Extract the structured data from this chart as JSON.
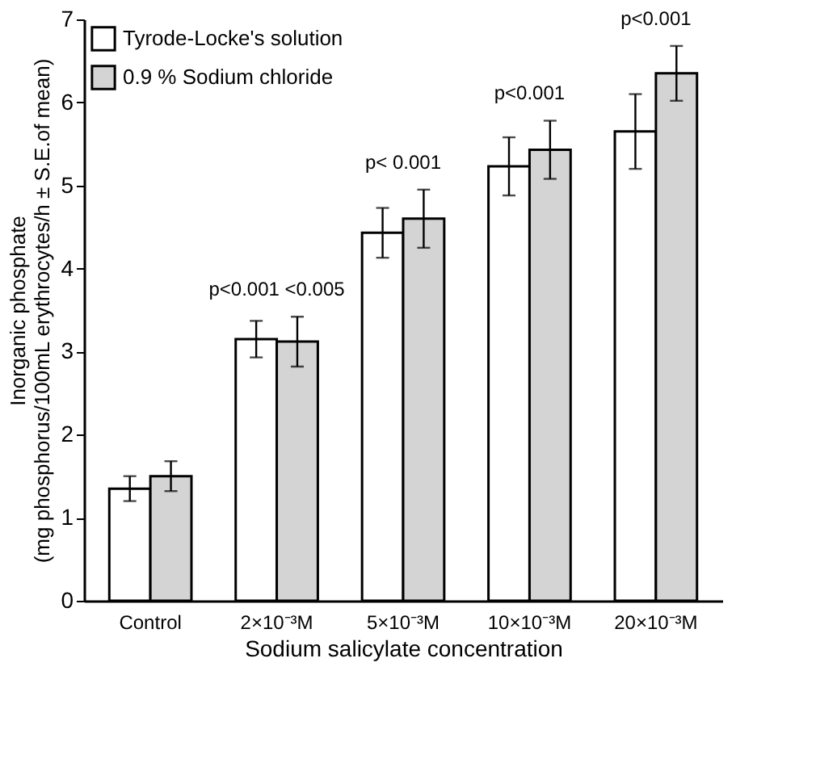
{
  "chart_data": {
    "type": "bar",
    "xlabel": "Sodium salicylate concentration",
    "ylabel": "Inorganic phosphate\n(mg phosphorus/100mL erythrocytes/h  ± S.E.of mean)",
    "categories": [
      "Control",
      "2×10⁻³M",
      "5×10⁻³M",
      "10×10⁻³M",
      "20×10⁻³M"
    ],
    "series": [
      {
        "name": "Tyrode-Locke's solution",
        "color": "#ffffff",
        "values": [
          1.35,
          3.15,
          4.43,
          5.23,
          5.65
        ],
        "errors": [
          0.15,
          0.22,
          0.3,
          0.35,
          0.45
        ]
      },
      {
        "name": "0.9 % Sodium chloride",
        "color": "#d4d4d4",
        "values": [
          1.5,
          3.12,
          4.6,
          5.43,
          6.35
        ],
        "errors": [
          0.18,
          0.3,
          0.35,
          0.35,
          0.33
        ]
      }
    ],
    "ylim": [
      0,
      7
    ],
    "yticks": [
      0,
      1,
      2,
      3,
      4,
      5,
      6,
      7
    ],
    "annotations": [
      "p<0.001  <0.005",
      "p< 0.001",
      "p<0.001",
      "p<0.001"
    ],
    "grid": false,
    "legend": "top left"
  }
}
